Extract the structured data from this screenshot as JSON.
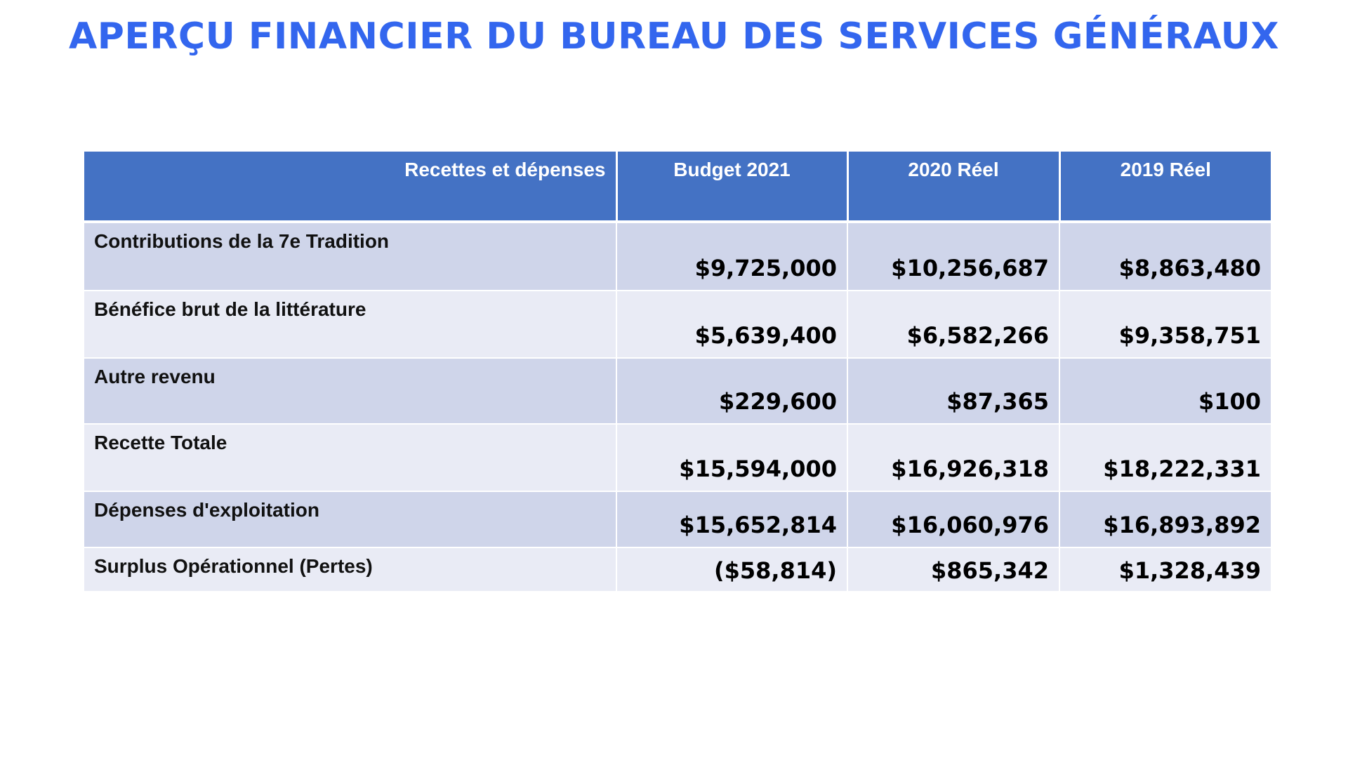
{
  "title": "APERÇU FINANCIER DU BUREAU DES SERVICES GÉNÉRAUX",
  "table": {
    "headers": [
      "Recettes et dépenses",
      "Budget 2021",
      "2020 Réel",
      "2019 Réel"
    ],
    "rows": [
      {
        "label": "Contributions de la 7e Tradition",
        "values": [
          "$9,725,000",
          "$10,256,687",
          "$8,863,480"
        ]
      },
      {
        "label": "Bénéfice brut de la littérature",
        "values": [
          "$5,639,400",
          "$6,582,266",
          "$9,358,751"
        ]
      },
      {
        "label": "Autre revenu",
        "values": [
          "$229,600",
          "$87,365",
          "$100"
        ]
      },
      {
        "label": "Recette Totale",
        "values": [
          "$15,594,000",
          "$16,926,318",
          "$18,222,331"
        ]
      },
      {
        "label": "Dépenses d'exploitation",
        "values": [
          "$15,652,814",
          "$16,060,976",
          "$16,893,892"
        ]
      },
      {
        "label": "Surplus Opérationnel (Pertes)",
        "values": [
          "($58,814)",
          "$865,342",
          "$1,328,439"
        ]
      }
    ]
  },
  "colors": {
    "title": "#3366ee",
    "header_bg": "#4472c4",
    "row_odd_bg": "#cfd5ea",
    "row_even_bg": "#e9ebf5"
  }
}
